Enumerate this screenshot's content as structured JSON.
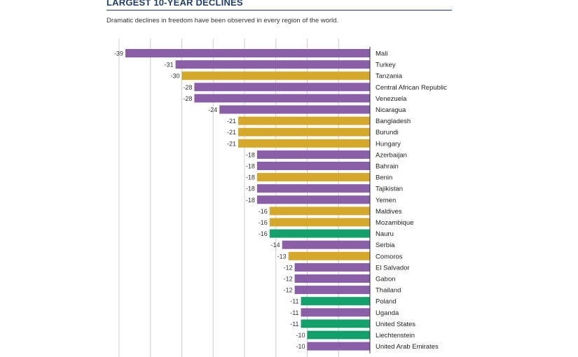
{
  "title": "LARGEST 10-YEAR DECLINES",
  "subtitle": "Dramatic declines in freedom have been observed in every region of the world.",
  "colors": {
    "purple": "#8b5ea8",
    "gold": "#d4a82b",
    "green": "#14a06a",
    "grid": "#cccccc",
    "axis": "#333333"
  },
  "chart_data": {
    "type": "bar",
    "orientation": "horizontal",
    "title": "LARGEST 10-YEAR DECLINES",
    "subtitle": "Dramatic declines in freedom have been observed in every region of the world.",
    "xlim": [
      -40,
      0
    ],
    "grid": true,
    "categories": [
      "Mali",
      "Turkey",
      "Tanzania",
      "Central African Republic",
      "Venezuela",
      "Nicaragua",
      "Bangladesh",
      "Burundi",
      "Hungary",
      "Azerbaijan",
      "Bahrain",
      "Benin",
      "Tajikistan",
      "Yemen",
      "Maldives",
      "Mozambique",
      "Nauru",
      "Serbia",
      "Comoros",
      "El Salvador",
      "Gabon",
      "Thailand",
      "Poland",
      "Uganda",
      "United States",
      "Liechtenstein",
      "United Arab Emirates"
    ],
    "values": [
      -39,
      -31,
      -30,
      -28,
      -28,
      -24,
      -21,
      -21,
      -21,
      -18,
      -18,
      -18,
      -18,
      -18,
      -16,
      -16,
      -16,
      -14,
      -13,
      -12,
      -12,
      -12,
      -11,
      -11,
      -11,
      -10,
      -10
    ],
    "labels": [
      "-39",
      "-31",
      "-30",
      "-28",
      "-28",
      "-24",
      "-21",
      "-21",
      "-21",
      "-18",
      "-18",
      "-18",
      "-18",
      "-18",
      "-16",
      "-16",
      "-16",
      "-14",
      "-13",
      "-12",
      "-12",
      "-12",
      "-11",
      "-11",
      "-11",
      "-10",
      "-10"
    ],
    "bar_colors": [
      "purple",
      "purple",
      "gold",
      "purple",
      "purple",
      "purple",
      "gold",
      "gold",
      "gold",
      "purple",
      "purple",
      "gold",
      "purple",
      "purple",
      "gold",
      "gold",
      "green",
      "purple",
      "gold",
      "purple",
      "purple",
      "purple",
      "green",
      "purple",
      "green",
      "green",
      "purple"
    ]
  }
}
